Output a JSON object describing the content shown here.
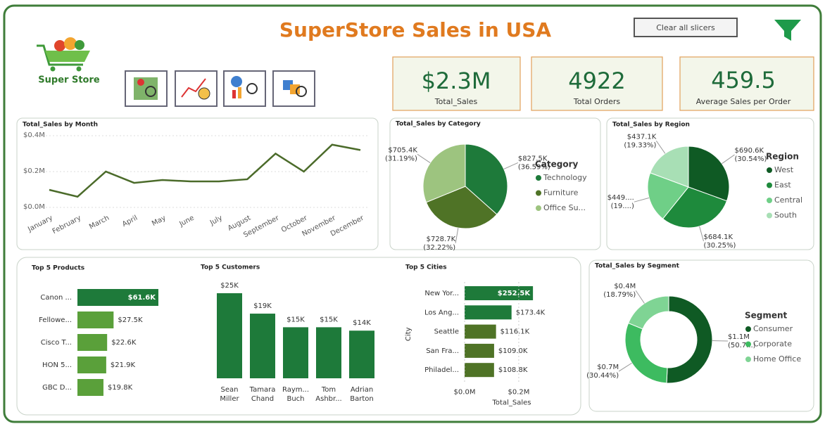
{
  "header": {
    "title": "SuperStore Sales in USA",
    "logo_text": "Super Store",
    "button": "Clear all slicers"
  },
  "kpis": [
    {
      "value": "$2.3M",
      "label": "Total_Sales"
    },
    {
      "value": "4922",
      "label": "Total Orders"
    },
    {
      "value": "459.5",
      "label": "Average Sales per Order"
    }
  ],
  "chart_data": [
    {
      "type": "line",
      "title": "Total_Sales by Month",
      "categories": [
        "January",
        "February",
        "March",
        "April",
        "May",
        "June",
        "July",
        "August",
        "September",
        "October",
        "November",
        "December"
      ],
      "values": [
        0.098,
        0.06,
        0.2,
        0.137,
        0.153,
        0.145,
        0.145,
        0.157,
        0.3,
        0.2,
        0.35,
        0.32
      ],
      "color": "#4b6b2a",
      "ylim": [
        0,
        0.4
      ],
      "yticks": [
        {
          "value": 0,
          "label": "$0.0M"
        },
        {
          "value": 0.2,
          "label": "$0.2M"
        },
        {
          "value": 0.4,
          "label": "$0.4M"
        }
      ],
      "grid": true
    },
    {
      "type": "pie",
      "title": "Total_Sales by Category",
      "legend_title": "Category",
      "categories": [
        "Technology",
        "Furniture",
        "Office Su..."
      ],
      "values": [
        827.5,
        728.7,
        705.4
      ],
      "value_labels": [
        "$827.5K",
        "$728.7K",
        "$705.4K"
      ],
      "percent_labels": [
        "(36.59%)",
        "(32.22%)",
        "(31.19%)"
      ],
      "colors": [
        "#1e7a3a",
        "#4f7326",
        "#9dc47f"
      ]
    },
    {
      "type": "pie",
      "title": "Total_Sales by Region",
      "legend_title": "Region",
      "categories": [
        "West",
        "East",
        "Central",
        "South"
      ],
      "values": [
        690.6,
        684.1,
        449.5,
        437.1
      ],
      "value_labels": [
        "$690.6K",
        "$684.1K",
        "$449....",
        "$437.1K"
      ],
      "percent_labels": [
        "(30.54%)",
        "(30.25%)",
        "(19....)",
        "(19.33%)"
      ],
      "colors": [
        "#0f5a24",
        "#1e8a3c",
        "#6fcf87",
        "#a8dfb5"
      ]
    },
    {
      "type": "bar",
      "orientation": "horizontal",
      "title": "Top 5 Products",
      "categories": [
        "Canon ...",
        "Fellowe...",
        "Cisco T...",
        "HON 5...",
        "GBC D..."
      ],
      "values": [
        61.6,
        27.5,
        22.6,
        21.9,
        19.8
      ],
      "value_labels": [
        "$61.6K",
        "$27.5K",
        "$22.6K",
        "$21.9K",
        "$19.8K"
      ],
      "colors": [
        "#1e7a3a",
        "#5aa03a",
        "#5aa03a",
        "#5aa03a",
        "#5aa03a"
      ]
    },
    {
      "type": "bar",
      "orientation": "vertical",
      "title": "Top 5 Customers",
      "categories": [
        "Sean Miller",
        "Tamara Chand",
        "Raym... Buch",
        "Tom Ashbr...",
        "Adrian Barton"
      ],
      "values": [
        25,
        19,
        15,
        15,
        14
      ],
      "value_labels": [
        "$25K",
        "$19K",
        "$15K",
        "$15K",
        "$14K"
      ],
      "colors": [
        "#1e7a3a",
        "#1e7a3a",
        "#1e7a3a",
        "#1e7a3a",
        "#1e7a3a"
      ]
    },
    {
      "type": "bar",
      "orientation": "horizontal",
      "title": "Top 5 Cities",
      "categories": [
        "New Yor...",
        "Los Ang...",
        "Seattle",
        "San Fra...",
        "Philadel..."
      ],
      "values": [
        0.2525,
        0.1734,
        0.1161,
        0.109,
        0.1088
      ],
      "value_labels": [
        "$252.5K",
        "$173.4K",
        "$116.1K",
        "$109.0K",
        "$108.8K"
      ],
      "colors": [
        "#1e7a3a",
        "#1e7a3a",
        "#4f7326",
        "#4f7326",
        "#4f7326"
      ],
      "xlim": [
        0,
        0.26
      ],
      "xticks": [
        {
          "value": 0,
          "label": "$0.0M"
        },
        {
          "value": 0.2,
          "label": "$0.2M"
        }
      ],
      "x_label": "Total_Sales",
      "y_label": "City"
    },
    {
      "type": "donut",
      "title": "Total_Sales by Segment",
      "legend_title": "Segment",
      "categories": [
        "Consumer",
        "Corporate",
        "Home Office"
      ],
      "values": [
        1.148,
        0.688,
        0.425
      ],
      "value_labels": [
        "$1.1M",
        "$0.7M",
        "$0.4M"
      ],
      "percent_labels": [
        "(50.7...)",
        "(30.44%)",
        "(18.79%)"
      ],
      "colors": [
        "#0f5a24",
        "#3dbb60",
        "#7fd494"
      ]
    }
  ]
}
